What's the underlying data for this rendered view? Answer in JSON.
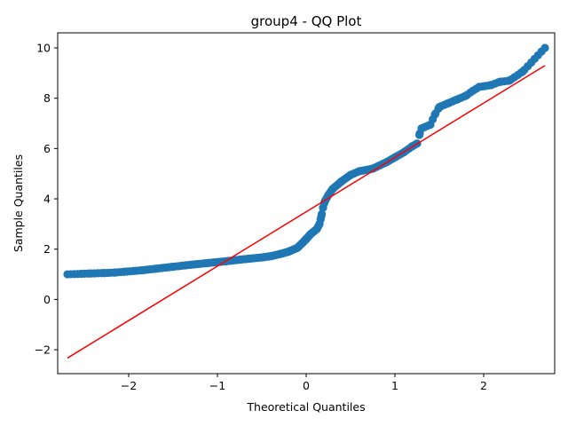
{
  "chart_data": {
    "type": "scatter",
    "title": "group4 - QQ Plot",
    "xlabel": "Theoretical Quantiles",
    "ylabel": "Sample Quantiles",
    "xlim": [
      -2.8,
      2.8
    ],
    "ylim": [
      -2.95,
      10.6
    ],
    "xticks": [
      -2,
      -1,
      0,
      1,
      2
    ],
    "xtick_labels": [
      "−2",
      "−1",
      "0",
      "1",
      "2"
    ],
    "yticks": [
      -2,
      0,
      2,
      4,
      6,
      8,
      10
    ],
    "ytick_labels": [
      "−2",
      "0",
      "2",
      "4",
      "6",
      "8",
      "10"
    ],
    "grid": false,
    "marker_color": "#1f77b4",
    "line_color": "#ff0000",
    "reference_line": {
      "x": [
        -2.69,
        2.69
      ],
      "y": [
        -2.33,
        9.3
      ]
    },
    "quantile_curve": [
      [
        -2.69,
        1.0
      ],
      [
        -2.44,
        1.03
      ],
      [
        -2.28,
        1.05
      ],
      [
        -2.15,
        1.07
      ],
      [
        -2.05,
        1.1
      ],
      [
        -1.95,
        1.13
      ],
      [
        -1.85,
        1.16
      ],
      [
        -1.7,
        1.22
      ],
      [
        -1.5,
        1.3
      ],
      [
        -1.3,
        1.38
      ],
      [
        -1.1,
        1.45
      ],
      [
        -0.9,
        1.52
      ],
      [
        -0.7,
        1.6
      ],
      [
        -0.5,
        1.67
      ],
      [
        -0.4,
        1.72
      ],
      [
        -0.3,
        1.8
      ],
      [
        -0.2,
        1.9
      ],
      [
        -0.1,
        2.05
      ],
      [
        -0.05,
        2.22
      ],
      [
        0.0,
        2.4
      ],
      [
        0.05,
        2.6
      ],
      [
        0.12,
        2.8
      ],
      [
        0.15,
        3.0
      ],
      [
        0.17,
        3.3
      ],
      [
        0.19,
        3.65
      ],
      [
        0.21,
        3.9
      ],
      [
        0.25,
        4.15
      ],
      [
        0.3,
        4.4
      ],
      [
        0.4,
        4.7
      ],
      [
        0.5,
        4.95
      ],
      [
        0.6,
        5.1
      ],
      [
        0.75,
        5.2
      ],
      [
        0.9,
        5.45
      ],
      [
        1.0,
        5.65
      ],
      [
        1.1,
        5.85
      ],
      [
        1.2,
        6.1
      ],
      [
        1.25,
        6.2
      ],
      [
        1.28,
        6.6
      ],
      [
        1.3,
        6.8
      ],
      [
        1.4,
        6.95
      ],
      [
        1.45,
        7.35
      ],
      [
        1.5,
        7.65
      ],
      [
        1.6,
        7.8
      ],
      [
        1.7,
        7.95
      ],
      [
        1.8,
        8.1
      ],
      [
        1.88,
        8.3
      ],
      [
        1.95,
        8.45
      ],
      [
        2.01,
        8.48
      ],
      [
        2.08,
        8.52
      ],
      [
        2.18,
        8.65
      ],
      [
        2.29,
        8.7
      ],
      [
        2.44,
        9.06
      ],
      [
        2.69,
        10.0
      ]
    ]
  }
}
